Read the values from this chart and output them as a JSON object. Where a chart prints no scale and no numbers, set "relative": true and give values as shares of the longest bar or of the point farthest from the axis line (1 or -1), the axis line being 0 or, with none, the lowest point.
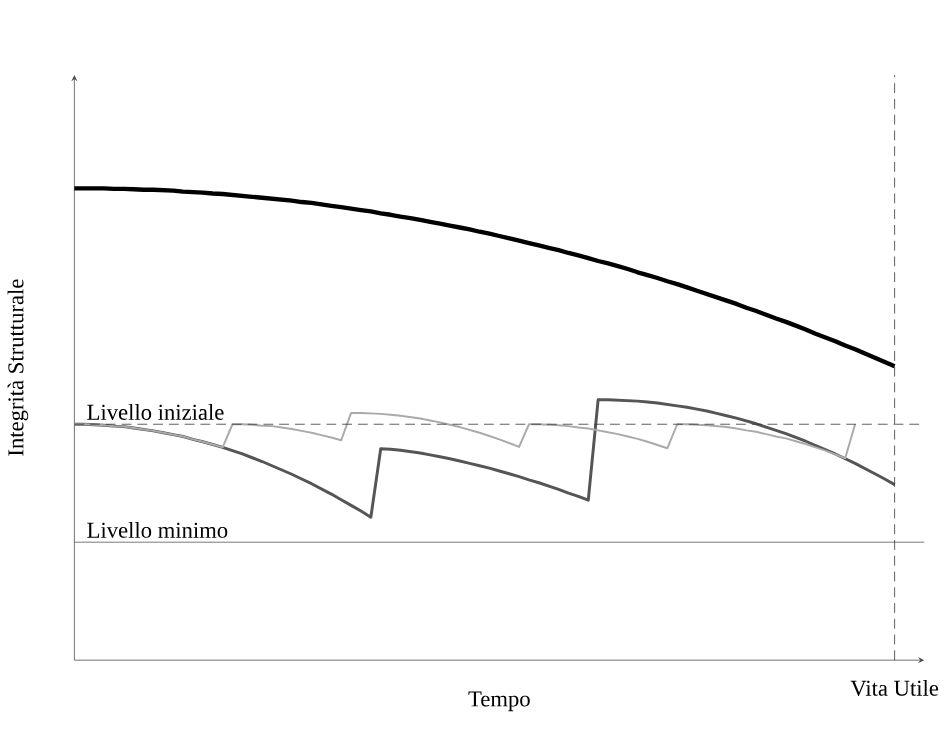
{
  "chart_data": {
    "type": "line",
    "relative": true,
    "xlabel": "Tempo",
    "ylabel": "Integrità Strutturale",
    "categories": [
      null,
      null,
      null,
      null,
      null,
      null,
      null,
      null,
      null,
      null,
      null,
      null,
      null,
      null,
      null,
      null,
      null,
      null,
      null,
      null,
      null,
      null,
      null,
      null,
      null,
      null,
      null,
      null,
      null,
      null,
      null,
      null,
      null,
      null,
      null,
      null,
      null,
      null,
      null,
      null,
      null,
      null,
      null,
      null,
      null,
      null,
      null,
      null,
      null,
      null,
      null,
      null,
      null,
      null,
      null,
      null,
      null,
      null,
      null,
      null,
      null,
      null,
      null,
      null,
      null,
      null,
      null,
      null,
      null,
      null,
      null,
      null,
      null,
      null,
      null,
      null,
      null,
      null,
      null,
      null,
      null,
      null,
      null,
      null
    ],
    "series": [
      {
        "color": "#000000",
        "values": [
          1.0,
          1.0,
          1.0,
          1.0,
          0.999,
          0.999,
          0.998,
          0.997,
          0.997,
          0.996,
          0.995,
          0.993,
          0.992,
          0.991,
          0.989,
          0.988,
          0.986,
          0.984,
          0.982,
          0.98,
          0.978,
          0.976,
          0.974,
          0.971,
          0.969,
          0.966,
          0.963,
          0.96,
          0.957,
          0.954,
          0.951,
          0.947,
          0.944,
          0.94,
          0.937,
          0.933,
          0.929,
          0.925,
          0.921,
          0.917,
          0.913,
          0.908,
          0.904,
          0.899,
          0.894,
          0.889,
          0.884,
          0.879,
          0.874,
          0.869,
          0.863,
          0.858,
          0.852,
          0.846,
          0.841,
          0.835,
          0.829,
          0.822,
          0.816,
          0.81,
          0.803,
          0.797,
          0.79,
          0.783,
          0.776,
          0.769,
          0.762,
          0.755,
          0.747,
          0.74,
          0.732,
          0.724,
          0.717,
          0.709,
          0.701,
          0.692,
          0.684,
          0.676,
          0.667,
          0.659,
          0.65,
          0.641,
          0.632,
          0.623
        ]
      },
      {
        "color": "#555555",
        "values": [
          0.5,
          0.5,
          0.499,
          0.498,
          0.496,
          0.495,
          0.492,
          0.489,
          0.486,
          0.482,
          0.478,
          0.474,
          0.468,
          0.463,
          0.457,
          0.451,
          0.444,
          0.437,
          0.429,
          0.421,
          0.412,
          0.403,
          0.394,
          0.384,
          0.374,
          0.363,
          0.352,
          0.34,
          0.328,
          0.316,
          0.303,
          0.448,
          0.447,
          0.445,
          0.442,
          0.439,
          0.435,
          0.431,
          0.427,
          0.422,
          0.417,
          0.412,
          0.407,
          0.401,
          0.395,
          0.389,
          0.382,
          0.376,
          0.369,
          0.362,
          0.354,
          0.347,
          0.339,
          0.552,
          0.552,
          0.551,
          0.55,
          0.549,
          0.547,
          0.545,
          0.542,
          0.539,
          0.536,
          0.532,
          0.528,
          0.523,
          0.518,
          0.513,
          0.507,
          0.501,
          0.494,
          0.487,
          0.48,
          0.472,
          0.464,
          0.455,
          0.446,
          0.437,
          0.427,
          0.417,
          0.406,
          0.395,
          0.384,
          0.372
        ]
      },
      {
        "color": "#aaaaaa",
        "values": [
          0.5,
          0.5,
          0.499,
          0.498,
          0.496,
          0.495,
          0.492,
          0.489,
          0.486,
          0.482,
          0.478,
          0.474,
          0.468,
          0.463,
          0.457,
          0.451,
          0.5,
          0.5,
          0.499,
          0.497,
          0.496,
          0.493,
          0.49,
          0.486,
          0.482,
          0.477,
          0.472,
          0.466,
          0.524,
          0.524,
          0.523,
          0.522,
          0.52,
          0.518,
          0.515,
          0.512,
          0.508,
          0.504,
          0.499,
          0.494,
          0.488,
          0.482,
          0.475,
          0.468,
          0.46,
          0.452,
          0.5,
          0.5,
          0.499,
          0.498,
          0.496,
          0.493,
          0.491,
          0.487,
          0.483,
          0.479,
          0.474,
          0.469,
          0.463,
          0.456,
          0.449,
          0.5,
          0.5,
          0.499,
          0.498,
          0.496,
          0.494,
          0.491,
          0.487,
          0.484,
          0.479,
          0.474,
          0.47,
          0.464,
          0.458,
          0.451,
          0.444,
          0.436,
          0.428,
          0.5,
          null,
          null,
          null,
          null
        ]
      }
    ],
    "ref_lines": [
      {
        "axis": "y",
        "value": 0.5,
        "label": "Livello iniziale",
        "color": "#333333",
        "line_style": "dashed"
      },
      {
        "axis": "y",
        "value": 0.25,
        "label": "Livello minimo",
        "color": "#555555",
        "line_style": "solid"
      }
    ],
    "annotations": [
      "Vita Utile"
    ]
  }
}
